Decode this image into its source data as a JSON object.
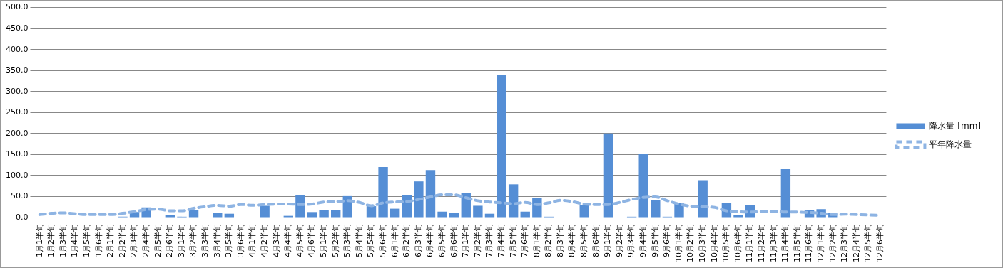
{
  "chart_data": {
    "type": "bar",
    "categories": [
      "1月1半旬",
      "1月2半旬",
      "1月3半旬",
      "1月4半旬",
      "1月5半旬",
      "1月6半旬",
      "2月1半旬",
      "2月2半旬",
      "2月3半旬",
      "2月4半旬",
      "2月5半旬",
      "2月6半旬",
      "3月1半旬",
      "3月2半旬",
      "3月3半旬",
      "3月4半旬",
      "3月5半旬",
      "3月6半旬",
      "4月1半旬",
      "4月2半旬",
      "4月3半旬",
      "4月4半旬",
      "4月5半旬",
      "4月6半旬",
      "5月1半旬",
      "5月2半旬",
      "5月3半旬",
      "5月4半旬",
      "5月5半旬",
      "5月6半旬",
      "6月1半旬",
      "6月2半旬",
      "6月3半旬",
      "6月4半旬",
      "6月5半旬",
      "6月6半旬",
      "7月1半旬",
      "7月2半旬",
      "7月3半旬",
      "7月4半旬",
      "7月5半旬",
      "7月6半旬",
      "8月1半旬",
      "8月2半旬",
      "8月3半旬",
      "8月4半旬",
      "8月5半旬",
      "8月6半旬",
      "9月1半旬",
      "9月2半旬",
      "9月3半旬",
      "9月4半旬",
      "9月5半旬",
      "9月6半旬",
      "10月1半旬",
      "10月2半旬",
      "10月3半旬",
      "10月4半旬",
      "10月5半旬",
      "10月6半旬",
      "11月1半旬",
      "11月2半旬",
      "11月3半旬",
      "11月4半旬",
      "11月5半旬",
      "11月6半旬",
      "12月1半旬",
      "12月2半旬",
      "12月3半旬",
      "12月4半旬",
      "12月5半旬",
      "12月6半旬"
    ],
    "series": [
      {
        "name": "降水量 [mm]",
        "color": "#558ed5",
        "values": [
          0,
          0,
          0,
          0,
          0,
          0,
          0,
          2,
          13,
          24,
          0,
          5,
          2,
          18,
          0,
          11,
          9,
          0,
          0,
          28,
          0,
          4,
          53,
          13,
          18,
          18,
          51,
          0,
          27,
          120,
          21,
          54,
          86,
          113,
          14,
          11,
          59,
          28,
          9,
          340,
          79,
          14,
          47,
          2,
          0,
          0,
          30,
          0,
          200,
          0,
          2,
          152,
          41,
          2,
          34,
          0,
          89,
          0,
          34,
          5,
          30,
          0,
          0,
          115,
          0,
          18,
          20,
          12,
          0,
          0,
          0,
          0
        ]
      },
      {
        "name": "平年降水量",
        "type": "line",
        "color": "#8eb4e3",
        "line_style": "dashed",
        "marker": "none",
        "values": [
          7,
          10,
          11,
          9,
          7,
          7,
          7,
          10,
          14,
          19,
          20,
          16,
          16,
          22,
          26,
          29,
          27,
          31,
          29,
          31,
          32,
          32,
          31,
          32,
          37,
          38,
          40,
          36,
          28,
          35,
          37,
          38,
          43,
          49,
          54,
          54,
          47,
          40,
          37,
          35,
          33,
          36,
          31,
          35,
          41,
          38,
          32,
          31,
          31,
          36,
          43,
          48,
          49,
          40,
          32,
          27,
          26,
          24,
          16,
          14,
          13,
          14,
          14,
          13,
          13,
          12,
          10,
          7,
          8,
          7,
          6,
          5
        ]
      }
    ],
    "ylim": [
      0,
      500
    ],
    "yticks": [
      {
        "value": 0,
        "label": "0.0"
      },
      {
        "value": 50,
        "label": "50.0"
      },
      {
        "value": 100,
        "label": "100.0"
      },
      {
        "value": 150,
        "label": "150.0"
      },
      {
        "value": 200,
        "label": "200.0"
      },
      {
        "value": 250,
        "label": "250.0"
      },
      {
        "value": 300,
        "label": "300.0"
      },
      {
        "value": 350,
        "label": "350.0"
      },
      {
        "value": 400,
        "label": "400.0"
      },
      {
        "value": 450,
        "label": "450.0"
      },
      {
        "value": 500,
        "label": "500.0"
      }
    ],
    "grid": "y",
    "legend": "right"
  }
}
